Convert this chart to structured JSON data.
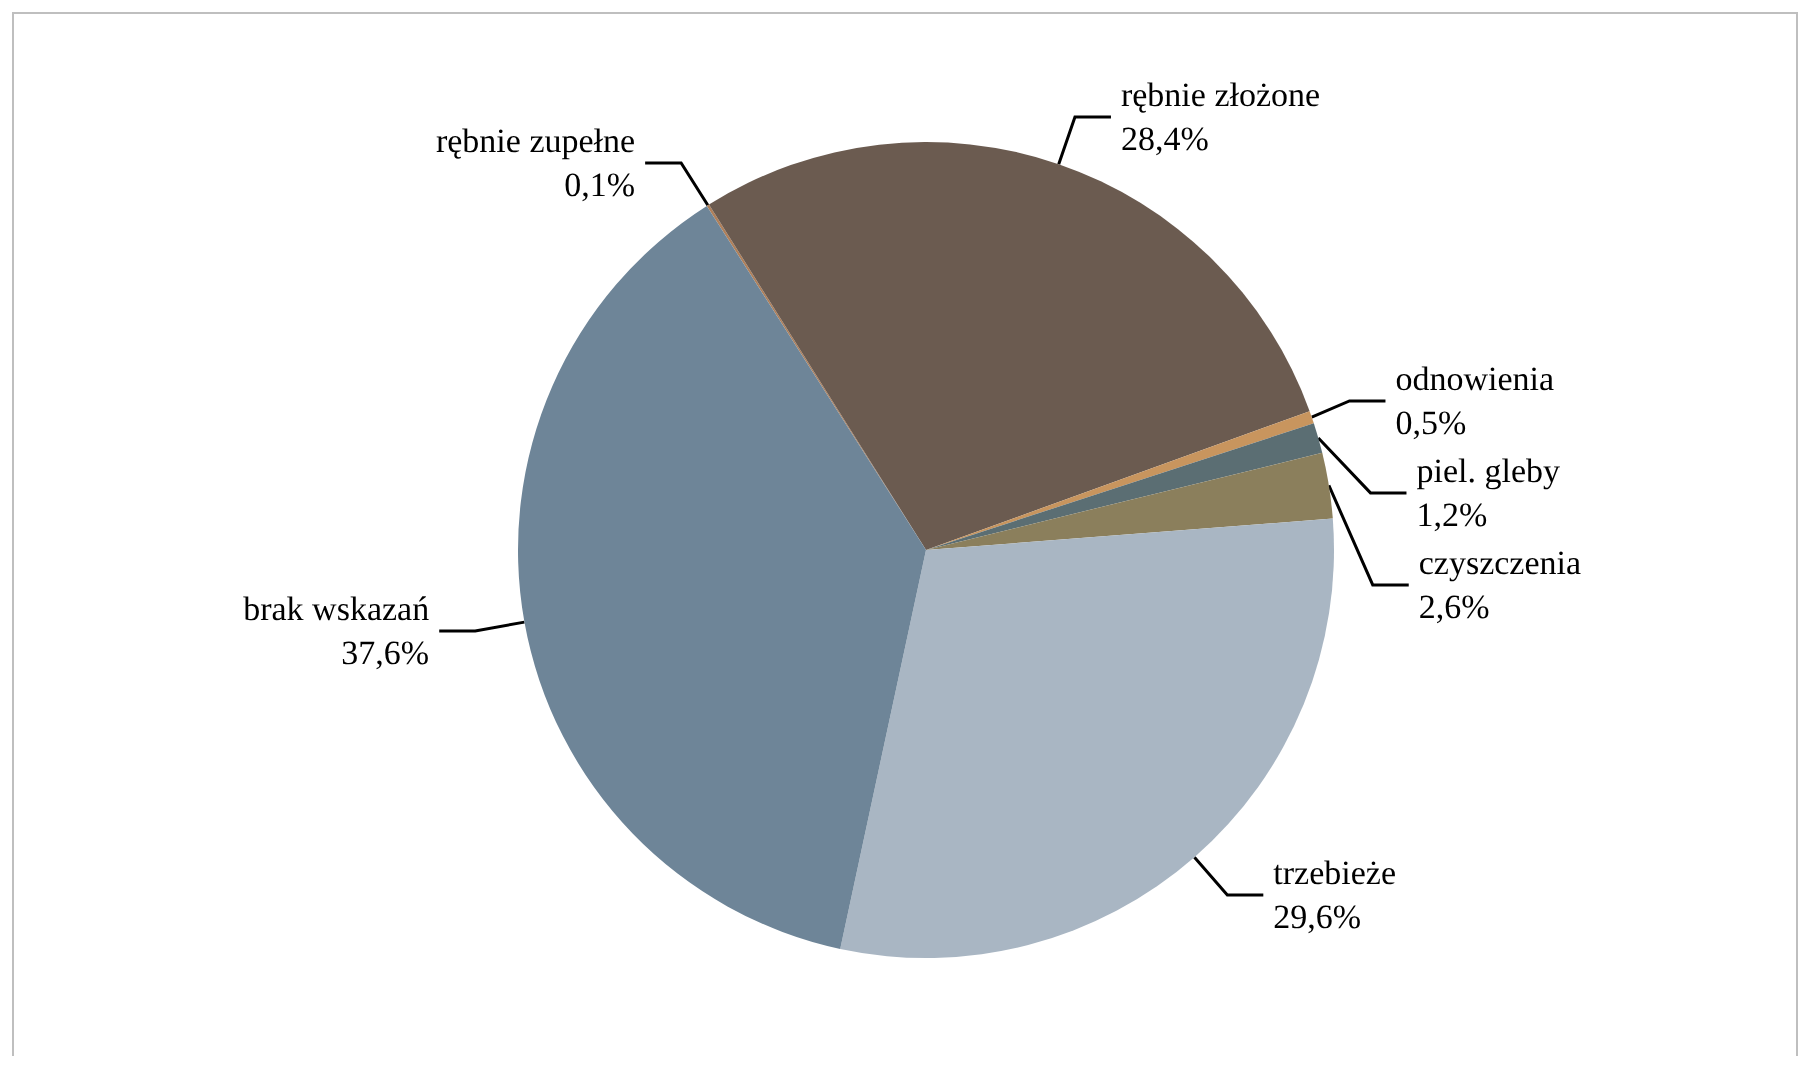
{
  "chart_data": {
    "type": "pie",
    "categories": [
      "rębnie zupełne",
      "rębnie złożone",
      "odnowienia",
      "piel. gleby",
      "czyszczenia",
      "trzebieże",
      "brak wskazań"
    ],
    "values": [
      0.1,
      28.4,
      0.5,
      1.2,
      2.6,
      29.6,
      37.6
    ],
    "value_labels": [
      "0,1%",
      "28,4%",
      "0,5%",
      "1,2%",
      "2,6%",
      "29,6%",
      "37,6%"
    ],
    "colors": [
      "#b0805a",
      "#6b5b50",
      "#c8955e",
      "#5b6e73",
      "#8b7f5c",
      "#a9b6c3",
      "#6e8598"
    ],
    "legend": false
  }
}
